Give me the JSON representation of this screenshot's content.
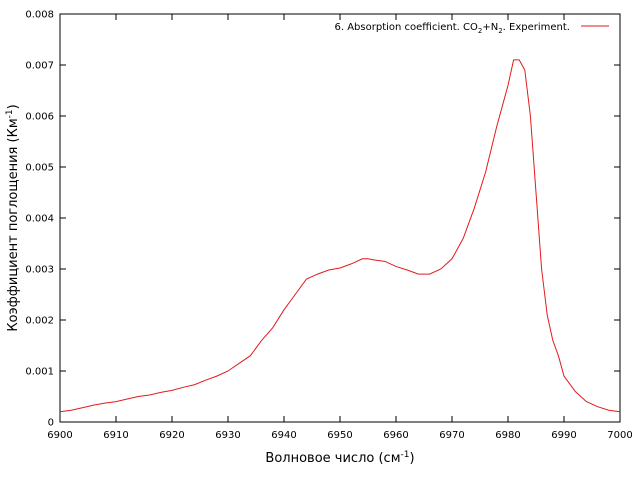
{
  "chart_data": {
    "type": "line",
    "title": "",
    "xlabel_main": "Волновое число (см",
    "xlabel_sup": "-1",
    "xlabel_tail": ")",
    "ylabel_main": "Коэффициент поглощения (Км",
    "ylabel_sup": "-1",
    "ylabel_tail": ")",
    "xlim": [
      6900,
      7000
    ],
    "ylim": [
      0,
      0.008
    ],
    "grid": false,
    "legend_position": "top-right",
    "x_ticks": [
      "6900",
      "6910",
      "6920",
      "6930",
      "6940",
      "6950",
      "6960",
      "6970",
      "6980",
      "6990",
      "7000"
    ],
    "y_ticks": [
      "0",
      "0.001",
      "0.002",
      "0.003",
      "0.004",
      "0.005",
      "0.006",
      "0.007",
      "0.008"
    ],
    "series": [
      {
        "name": "6. Absorption coefficient. CO2+N2. Experiment.",
        "legend_parts": {
          "a": "6. Absorption coefficient. CO",
          "sub1": "2",
          "b": "+N",
          "sub2": "2",
          "c": ". Experiment."
        },
        "color": "#e31a1c",
        "x": [
          6900,
          6902,
          6904,
          6906,
          6908,
          6910,
          6912,
          6914,
          6916,
          6918,
          6920,
          6922,
          6924,
          6926,
          6928,
          6930,
          6932,
          6934,
          6936,
          6938,
          6940,
          6942,
          6944,
          6946,
          6948,
          6950,
          6952,
          6954,
          6955,
          6956,
          6958,
          6960,
          6962,
          6964,
          6966,
          6968,
          6970,
          6972,
          6974,
          6976,
          6978,
          6980,
          6981,
          6982,
          6983,
          6984,
          6985,
          6986,
          6987,
          6988,
          6989,
          6990,
          6992,
          6994,
          6996,
          6998,
          7000
        ],
        "y": [
          0.0002,
          0.00023,
          0.00028,
          0.00033,
          0.00037,
          0.0004,
          0.00045,
          0.0005,
          0.00053,
          0.00058,
          0.00062,
          0.00068,
          0.00073,
          0.00082,
          0.0009,
          0.001,
          0.00115,
          0.0013,
          0.0016,
          0.00185,
          0.0022,
          0.0025,
          0.0028,
          0.0029,
          0.00298,
          0.00302,
          0.0031,
          0.0032,
          0.0032,
          0.00318,
          0.00315,
          0.00305,
          0.00298,
          0.0029,
          0.0029,
          0.003,
          0.0032,
          0.0036,
          0.0042,
          0.0049,
          0.0058,
          0.0066,
          0.0071,
          0.0071,
          0.0069,
          0.006,
          0.0045,
          0.003,
          0.0021,
          0.0016,
          0.0013,
          0.0009,
          0.0006,
          0.0004,
          0.0003,
          0.00023,
          0.0002
        ]
      }
    ]
  }
}
